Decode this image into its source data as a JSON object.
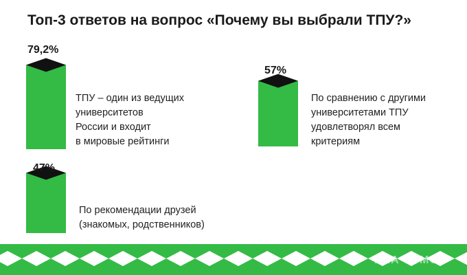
{
  "chart_data": {
    "type": "bar",
    "title": "Топ-3 ответов на вопрос «Почему вы выбрали ТПУ?»",
    "categories": [
      [
        "ТПУ – один из ведущих",
        "университетов",
        "России и входит",
        "в мировые рейтинги"
      ],
      [
        "По сравнению с другими",
        "университетами ТПУ",
        "удовлетворял всем",
        "критериям"
      ],
      [
        "По рекомендации друзей",
        "(знакомых, родственников)"
      ]
    ],
    "series": [
      {
        "values": [
          79.2,
          57,
          47
        ]
      }
    ],
    "value_labels": [
      "79,2%",
      "57%",
      "47%"
    ],
    "colors": {
      "bar": "#33bb45",
      "top": "#111111",
      "stripe": "#33bb45"
    }
  },
  "watermark": "РИА ТОМСК"
}
